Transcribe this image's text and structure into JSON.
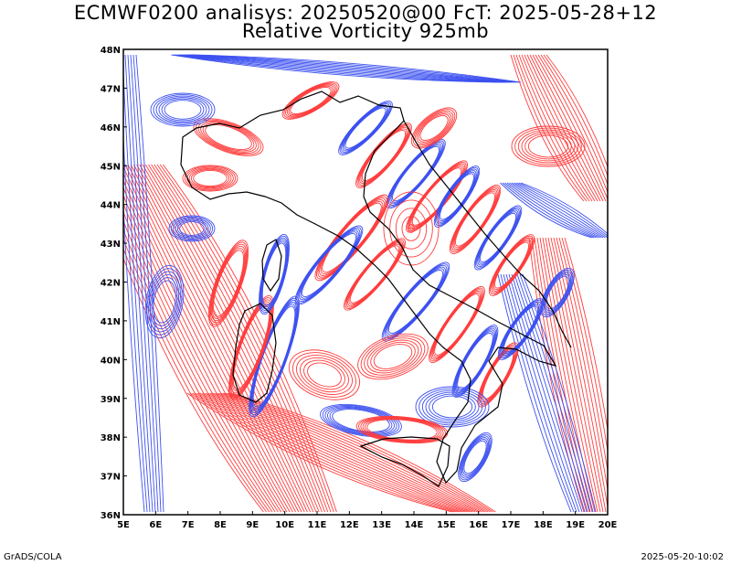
{
  "map": {
    "title_line1": "ECMWF0200 analisys: 20250520@00 FcT: 2025-05-28+12",
    "title_line2": "Relative Vorticity 925mb",
    "extent": {
      "lon_min": 5,
      "lon_max": 20,
      "lat_min": 36,
      "lat_max": 48
    },
    "lon_ticks": [
      "5E",
      "6E",
      "7E",
      "8E",
      "9E",
      "10E",
      "11E",
      "12E",
      "13E",
      "14E",
      "15E",
      "16E",
      "17E",
      "18E",
      "19E",
      "20E"
    ],
    "lat_ticks": [
      "36N",
      "37N",
      "38N",
      "39N",
      "40N",
      "41N",
      "42N",
      "43N",
      "44N",
      "45N",
      "46N",
      "47N",
      "48N"
    ],
    "colors": {
      "positive": "#ff3c3c",
      "negative": "#3c50f0",
      "coast": "#000000"
    }
  },
  "footer": {
    "left": "GrADS/COLA",
    "right": "2025-05-20-10:02"
  }
}
